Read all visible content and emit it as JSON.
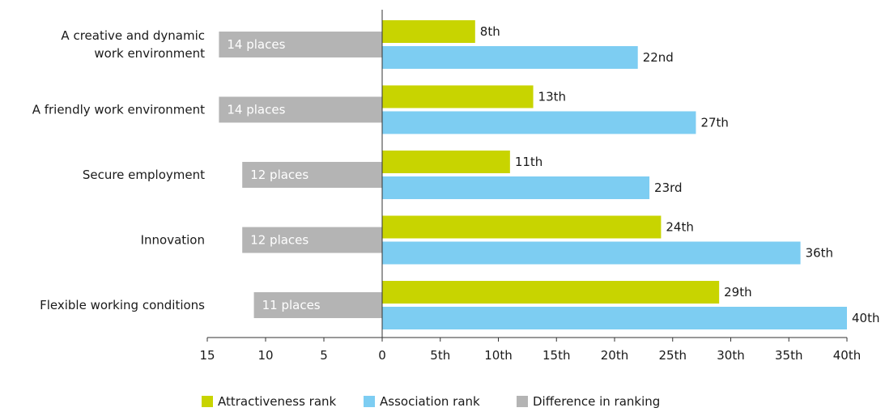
{
  "chart_data": {
    "type": "bar",
    "orientation": "horizontal",
    "categories": [
      [
        "A creative and dynamic",
        "work environment"
      ],
      [
        "A friendly work environment"
      ],
      [
        "Secure employment"
      ],
      [
        "Innovation"
      ],
      [
        "Flexible working conditions"
      ]
    ],
    "series": [
      {
        "name": "Attractiveness rank",
        "color": "#c8d400",
        "values": [
          8,
          13,
          11,
          24,
          29
        ],
        "labels": [
          "8th",
          "13th",
          "11th",
          "24th",
          "29th"
        ]
      },
      {
        "name": "Association rank",
        "color": "#7dcdf2",
        "values": [
          22,
          27,
          23,
          36,
          40
        ],
        "labels": [
          "22nd",
          "27th",
          "23rd",
          "36th",
          "40th"
        ]
      },
      {
        "name": "Difference in ranking",
        "color": "#b4b4b4",
        "values": [
          14,
          14,
          12,
          12,
          11
        ],
        "labels": [
          "14 places",
          "14 places",
          "12 places",
          "12 places",
          "11 places"
        ]
      }
    ],
    "left_axis": {
      "range": [
        15,
        0
      ],
      "ticks": [
        15,
        10,
        5,
        0
      ],
      "tick_labels": [
        "15",
        "10",
        "5",
        "0"
      ]
    },
    "right_axis": {
      "range": [
        0,
        40
      ],
      "ticks": [
        5,
        10,
        15,
        20,
        25,
        30,
        35,
        40
      ],
      "tick_labels": [
        "5th",
        "10th",
        "15th",
        "20th",
        "25th",
        "30th",
        "35th",
        "40th"
      ]
    },
    "grid": false,
    "legend_position": "bottom",
    "title": "",
    "xlabel": "",
    "ylabel": ""
  }
}
